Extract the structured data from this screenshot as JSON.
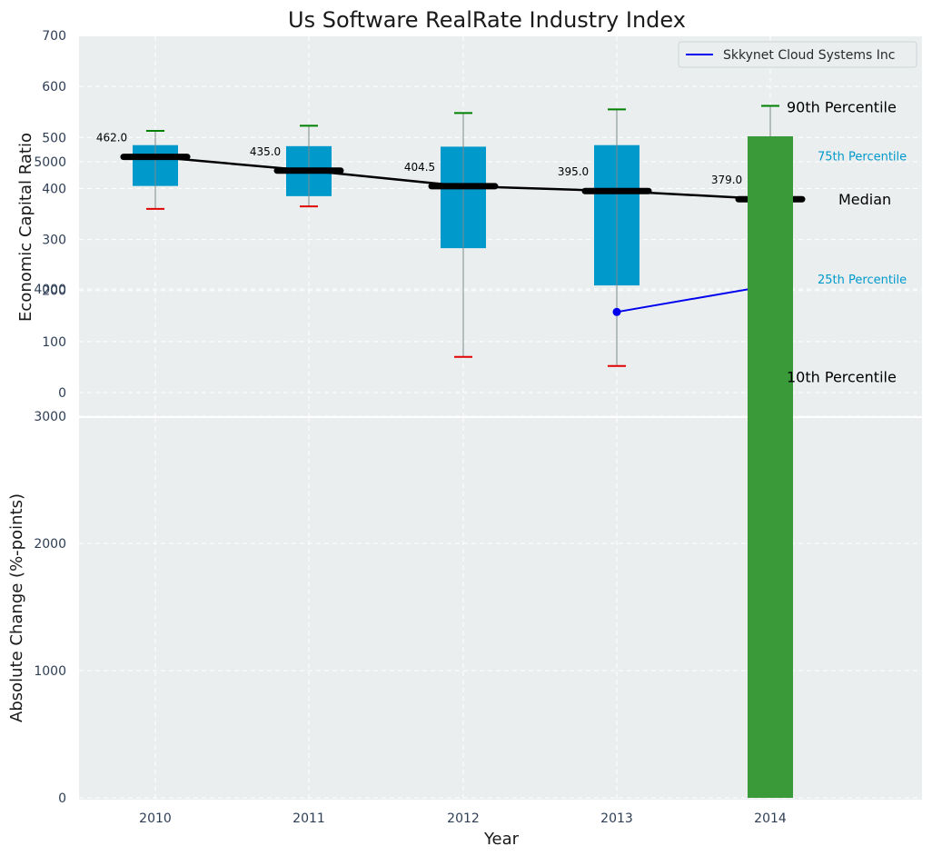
{
  "chart_data": [
    {
      "type": "box",
      "title": "Us Software RealRate Industry Index",
      "xlabel": "",
      "ylabel": "Economic Capital Ratio",
      "ylim": [
        -50,
        700
      ],
      "yticks": [
        0,
        100,
        200,
        300,
        400,
        500,
        600,
        700
      ],
      "categories": [
        "2010",
        "2011",
        "2012",
        "2013",
        "2014"
      ],
      "boxes": [
        {
          "year": "2010",
          "p10": 360,
          "p25": 405,
          "median": 462.0,
          "p75": 485,
          "p90": 513
        },
        {
          "year": "2011",
          "p10": 365,
          "p25": 385,
          "median": 435.0,
          "p75": 483,
          "p90": 523
        },
        {
          "year": "2012",
          "p10": 70,
          "p25": 283,
          "median": 404.5,
          "p75": 482,
          "p90": 548
        },
        {
          "year": "2013",
          "p10": 52,
          "p25": 210,
          "median": 395.0,
          "p75": 485,
          "p90": 555
        },
        {
          "year": "2014",
          "p10": 42,
          "p25": 210,
          "median": 379.0,
          "p75": 480,
          "p90": 562
        }
      ],
      "median_labels": [
        "462.0",
        "435.0",
        "404.5",
        "395.0",
        "379.0"
      ],
      "company_series": {
        "name": "Skkynet Cloud Systems Inc",
        "x": [
          "2013",
          "2014"
        ],
        "values": [
          158,
          210
        ],
        "color": "#0000ee"
      },
      "annotations": {
        "p90": "90th Percentile",
        "p75": "75th Percentile",
        "median": "Median",
        "p25": "25th Percentile",
        "p10": "10th Percentile"
      },
      "legend": {
        "placement": "top-right",
        "entries": [
          "Skkynet Cloud Systems Inc"
        ]
      },
      "grid": true,
      "colors": {
        "box": "#0099cc",
        "median": "#000000",
        "whisker_high_cap": "#008000",
        "whisker_low_cap": "#e00000",
        "background": "#eaeeef"
      }
    },
    {
      "type": "bar",
      "xlabel": "Year",
      "ylabel": "Absolute Change (%-points)",
      "ylim": [
        0,
        5450
      ],
      "yticks": [
        0,
        1000,
        2000,
        3000,
        4000,
        5000
      ],
      "categories": [
        "2010",
        "2011",
        "2012",
        "2013",
        "2014"
      ],
      "values": [
        null,
        null,
        null,
        null,
        5200
      ],
      "grid": true,
      "colors": {
        "bar": "#3a9a3a",
        "background": "#eaeeef"
      }
    }
  ]
}
